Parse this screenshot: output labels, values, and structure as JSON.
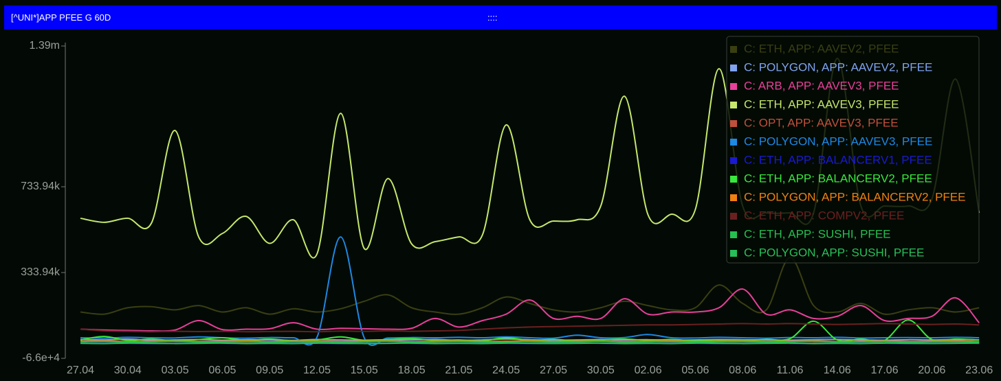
{
  "chart_data": {
    "type": "line",
    "title": "[^UNI*]APP PFEE G 60D",
    "drag_handle": "::::",
    "legend": "upper right",
    "grid": false,
    "categories": [
      "27.04",
      null,
      "30.04",
      null,
      "03.05",
      null,
      "06.05",
      null,
      "09.05",
      null,
      "12.05",
      null,
      "15.05",
      null,
      "18.05",
      null,
      "21.05",
      null,
      "24.05",
      null,
      "27.05",
      null,
      "30.05",
      null,
      "02.06",
      null,
      "05.06",
      null,
      "08.06",
      null,
      "11.06",
      null,
      "14.06",
      null,
      "17.06",
      null,
      "20.06",
      null,
      "23.06"
    ],
    "ylim": [
      -66000,
      1390000
    ],
    "yticks": [
      {
        "value": -66000,
        "label": "-6.6e+4"
      },
      {
        "value": 333940,
        "label": "333.94k"
      },
      {
        "value": 733940,
        "label": "733.94k"
      },
      {
        "value": 1390000,
        "label": "1.39m"
      }
    ],
    "series": [
      {
        "name": "C: ETH, APP: AAVEV2, PFEE",
        "color": "#3a3f12",
        "values": [
          150000,
          140000,
          170000,
          175000,
          160000,
          180000,
          150000,
          170000,
          140000,
          165000,
          150000,
          165000,
          200000,
          230000,
          170000,
          150000,
          140000,
          170000,
          220000,
          190000,
          160000,
          150000,
          170000,
          200000,
          180000,
          160000,
          170000,
          276000,
          190000,
          160000,
          404000,
          180000,
          150000,
          190000,
          140000,
          160000,
          170000,
          150000,
          170000
        ]
      },
      {
        "name": "C: POLYGON, APP: AAVEV2, PFEE",
        "color": "#7fa3ef",
        "values": [
          22000,
          20000,
          24000,
          18000,
          20000,
          22000,
          19000,
          21000,
          20000,
          18000,
          22000,
          20000,
          19000,
          21000,
          20000,
          22000,
          18000,
          20000,
          24000,
          21000,
          19000,
          20000,
          22000,
          20000,
          21000,
          19000,
          20000,
          22000,
          21000,
          20000,
          19000,
          21000,
          22000,
          20000,
          19000,
          21000,
          20000,
          22000,
          20000
        ]
      },
      {
        "name": "C: ARB, APP: AAVEV3, PFEE",
        "color": "#e8409a",
        "values": [
          70000,
          66000,
          64000,
          62000,
          66000,
          110000,
          68000,
          70000,
          72000,
          100000,
          70000,
          74000,
          72000,
          70000,
          74000,
          120000,
          80000,
          110000,
          140000,
          206000,
          120000,
          130000,
          120000,
          212000,
          140000,
          150000,
          150000,
          170000,
          257000,
          140000,
          160000,
          120000,
          130000,
          180000,
          110000,
          120000,
          130000,
          216000,
          100000
        ]
      },
      {
        "name": "C: ETH, APP: AAVEV3, PFEE",
        "color": "#c5e86c",
        "values": [
          587000,
          568000,
          587000,
          564000,
          996000,
          500000,
          516000,
          596000,
          470000,
          580000,
          420000,
          1076000,
          446000,
          772000,
          468000,
          478000,
          500000,
          510000,
          1022000,
          580000,
          574000,
          580000,
          644000,
          1156000,
          603000,
          606000,
          628000,
          1284000,
          644000,
          612000,
          612000,
          612000,
          1332000,
          644000,
          644000,
          644000,
          676000,
          1236000,
          612000
        ]
      },
      {
        "name": "C: OPT, APP: AAVEV3, PFEE",
        "color": "#c0503b",
        "values": [
          5000,
          4000,
          6000,
          4000,
          5000,
          4000,
          6000,
          5000,
          4000,
          5000,
          6000,
          4000,
          5000,
          4000,
          6000,
          5000,
          4000,
          5000,
          6000,
          4000,
          5000,
          6000,
          4000,
          5000,
          4000,
          6000,
          5000,
          4000,
          5000,
          6000,
          4000,
          5000,
          4000,
          6000,
          5000,
          4000,
          5000,
          6000,
          4000
        ]
      },
      {
        "name": "C: POLYGON, APP: AAVEV3, PFEE",
        "color": "#1e88e5",
        "values": [
          30000,
          28000,
          32000,
          30000,
          29000,
          34000,
          30000,
          28000,
          31000,
          30000,
          32000,
          500000,
          30000,
          29000,
          31000,
          30000,
          32000,
          30000,
          34000,
          30000,
          28000,
          42000,
          30000,
          31000,
          45000,
          30000,
          29000,
          32000,
          30000,
          28000,
          31000,
          30000,
          32000,
          29000,
          30000,
          31000,
          30000,
          32000,
          30000
        ]
      },
      {
        "name": "C: ETH, APP: BALANCERV1, PFEE",
        "color": "#1a1ad0",
        "values": [
          4000,
          5000,
          4000,
          3000,
          4000,
          5000,
          4000,
          3000,
          4000,
          5000,
          4000,
          3000,
          4000,
          5000,
          4000,
          3000,
          4000,
          5000,
          4000,
          3000,
          4000,
          5000,
          4000,
          3000,
          4000,
          5000,
          4000,
          3000,
          4000,
          5000,
          4000,
          3000,
          4000,
          5000,
          4000,
          3000,
          4000,
          5000,
          4000
        ]
      },
      {
        "name": "C: ETH, APP: BALANCERV2, PFEE",
        "color": "#39e83c",
        "values": [
          20000,
          36000,
          18000,
          24000,
          16000,
          22000,
          30000,
          18000,
          24000,
          16000,
          20000,
          34000,
          18000,
          22000,
          26000,
          18000,
          20000,
          16000,
          30000,
          18000,
          22000,
          16000,
          20000,
          24000,
          18000,
          22000,
          16000,
          20000,
          18000,
          22000,
          26000,
          107000,
          20000,
          24000,
          18000,
          113000,
          22000,
          24000,
          20000
        ]
      },
      {
        "name": "C: POLYGON, APP: BALANCERV2, PFEE",
        "color": "#f08010",
        "values": [
          14000,
          16000,
          12000,
          14000,
          15000,
          13000,
          14000,
          16000,
          12000,
          14000,
          15000,
          13000,
          14000,
          16000,
          12000,
          14000,
          15000,
          13000,
          14000,
          16000,
          12000,
          14000,
          15000,
          13000,
          14000,
          16000,
          12000,
          14000,
          15000,
          13000,
          14000,
          16000,
          12000,
          14000,
          15000,
          13000,
          14000,
          16000,
          12000
        ]
      },
      {
        "name": "C: ETH, APP: COMPV2, PFEE",
        "color": "#6b2020",
        "values": [
          70000,
          62000,
          60000,
          58000,
          60000,
          59000,
          60000,
          58000,
          59000,
          60000,
          58000,
          61000,
          60000,
          62000,
          60000,
          62000,
          64000,
          70000,
          76000,
          80000,
          82000,
          84000,
          86000,
          88000,
          90000,
          90000,
          92000,
          94000,
          96000,
          94000,
          96000,
          94000,
          92000,
          94000,
          96000,
          94000,
          92000,
          94000,
          90000
        ]
      },
      {
        "name": "C: ETH, APP: SUSHI, PFEE",
        "color": "#25c050",
        "values": [
          11000,
          12000,
          10000,
          11000,
          13000,
          10000,
          11000,
          12000,
          10000,
          11000,
          12000,
          10000,
          11000,
          13000,
          10000,
          11000,
          12000,
          10000,
          11000,
          12000,
          10000,
          11000,
          13000,
          10000,
          11000,
          12000,
          10000,
          11000,
          12000,
          10000,
          11000,
          13000,
          10000,
          11000,
          12000,
          10000,
          11000,
          12000,
          10000
        ]
      },
      {
        "name": "C: POLYGON, APP: SUSHI, PFEE",
        "color": "#28c058",
        "values": [
          4000,
          3000,
          5000,
          4000,
          3000,
          4000,
          5000,
          3000,
          4000,
          3000,
          5000,
          4000,
          3000,
          4000,
          5000,
          3000,
          4000,
          3000,
          5000,
          4000,
          3000,
          4000,
          5000,
          3000,
          4000,
          3000,
          5000,
          4000,
          3000,
          4000,
          5000,
          3000,
          4000,
          3000,
          5000,
          4000,
          3000,
          4000,
          5000
        ]
      }
    ]
  }
}
